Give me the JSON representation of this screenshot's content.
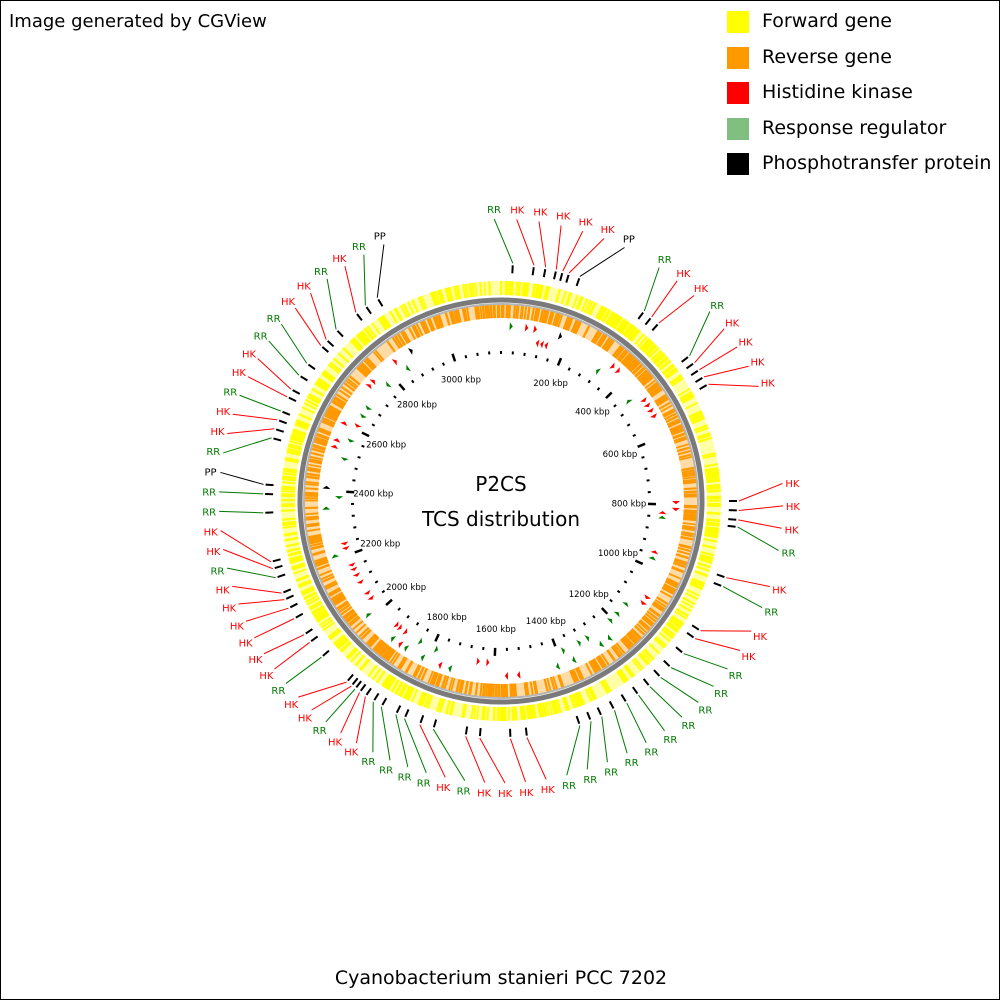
{
  "credit": "Image generated by CGView",
  "legend": [
    {
      "label": "Forward gene",
      "color": "#ffff00"
    },
    {
      "label": "Reverse gene",
      "color": "#ff9900"
    },
    {
      "label": "Histidine kinase",
      "color": "#ff0000"
    },
    {
      "label": "Response regulator",
      "color": "#7fbf7f"
    },
    {
      "label": "Phosphotransfer protein",
      "color": "#000000"
    }
  ],
  "center": {
    "line1": "P2CS",
    "line2": "TCS distribution"
  },
  "organism": "Cyanobacterium stanieri PCC 7202",
  "genome_length_kbp": 3160,
  "ticks": [
    {
      "kbp": 200,
      "label": "200 kbp"
    },
    {
      "kbp": 400,
      "label": "400 kbp"
    },
    {
      "kbp": 600,
      "label": "600 kbp"
    },
    {
      "kbp": 800,
      "label": "800 kbp"
    },
    {
      "kbp": 1000,
      "label": "1000 kbp"
    },
    {
      "kbp": 1200,
      "label": "1200 kbp"
    },
    {
      "kbp": 1400,
      "label": "1400 kbp"
    },
    {
      "kbp": 1600,
      "label": "1600 kbp"
    },
    {
      "kbp": 1800,
      "label": "1800 kbp"
    },
    {
      "kbp": 2000,
      "label": "2000 kbp"
    },
    {
      "kbp": 2200,
      "label": "2200 kbp"
    },
    {
      "kbp": 2400,
      "label": "2400 kbp"
    },
    {
      "kbp": 2600,
      "label": "2600 kbp"
    },
    {
      "kbp": 2800,
      "label": "2800 kbp"
    },
    {
      "kbp": 3000,
      "label": "3000 kbp"
    }
  ],
  "features": [
    {
      "type": "RR",
      "kbp": 25,
      "strand": 1
    },
    {
      "type": "HK",
      "kbp": 70,
      "strand": 1
    },
    {
      "type": "HK",
      "kbp": 95,
      "strand": 1
    },
    {
      "type": "HK",
      "kbp": 118,
      "strand": -1
    },
    {
      "type": "HK",
      "kbp": 132,
      "strand": -1
    },
    {
      "type": "HK",
      "kbp": 146,
      "strand": -1
    },
    {
      "type": "PP",
      "kbp": 170,
      "strand": 1
    },
    {
      "type": "RR",
      "kbp": 325,
      "strand": -1
    },
    {
      "type": "HK",
      "kbp": 345,
      "strand": 1
    },
    {
      "type": "HK",
      "kbp": 365,
      "strand": 1
    },
    {
      "type": "RR",
      "kbp": 460,
      "strand": -1
    },
    {
      "type": "HK",
      "kbp": 478,
      "strand": 1
    },
    {
      "type": "HK",
      "kbp": 496,
      "strand": 1
    },
    {
      "type": "HK",
      "kbp": 514,
      "strand": 1
    },
    {
      "type": "HK",
      "kbp": 532,
      "strand": 1
    },
    {
      "type": "HK",
      "kbp": 790,
      "strand": 1
    },
    {
      "type": "HK",
      "kbp": 810,
      "strand": 1
    },
    {
      "type": "HK",
      "kbp": 830,
      "strand": -1
    },
    {
      "type": "RR",
      "kbp": 845,
      "strand": -1
    },
    {
      "type": "HK",
      "kbp": 955,
      "strand": -1
    },
    {
      "type": "RR",
      "kbp": 975,
      "strand": -1
    },
    {
      "type": "HK",
      "kbp": 1080,
      "strand": 1
    },
    {
      "type": "HK",
      "kbp": 1100,
      "strand": 1
    },
    {
      "type": "RR",
      "kbp": 1140,
      "strand": -1
    },
    {
      "type": "RR",
      "kbp": 1180,
      "strand": -1
    },
    {
      "type": "RR",
      "kbp": 1210,
      "strand": -1
    },
    {
      "type": "RR",
      "kbp": 1240,
      "strand": 1
    },
    {
      "type": "RR",
      "kbp": 1270,
      "strand": 1
    },
    {
      "type": "RR",
      "kbp": 1300,
      "strand": -1
    },
    {
      "type": "RR",
      "kbp": 1330,
      "strand": -1
    },
    {
      "type": "RR",
      "kbp": 1360,
      "strand": 1
    },
    {
      "type": "RR",
      "kbp": 1385,
      "strand": -1
    },
    {
      "type": "RR",
      "kbp": 1410,
      "strand": 1
    },
    {
      "type": "HK",
      "kbp": 1525,
      "strand": 1
    },
    {
      "type": "HK",
      "kbp": 1560,
      "strand": 1
    },
    {
      "type": "HK",
      "kbp": 1625,
      "strand": -1
    },
    {
      "type": "HK",
      "kbp": 1655,
      "strand": -1
    },
    {
      "type": "RR",
      "kbp": 1725,
      "strand": 1
    },
    {
      "type": "HK",
      "kbp": 1755,
      "strand": 1
    },
    {
      "type": "RR",
      "kbp": 1790,
      "strand": -1
    },
    {
      "type": "RR",
      "kbp": 1810,
      "strand": 1
    },
    {
      "type": "RR",
      "kbp": 1845,
      "strand": -1
    },
    {
      "type": "RR",
      "kbp": 1865,
      "strand": 1
    },
    {
      "type": "HK",
      "kbp": 1885,
      "strand": 1
    },
    {
      "type": "HK",
      "kbp": 1900,
      "strand": -1
    },
    {
      "type": "RR",
      "kbp": 1912,
      "strand": 1
    },
    {
      "type": "HK",
      "kbp": 1922,
      "strand": -1
    },
    {
      "type": "HK",
      "kbp": 1935,
      "strand": -1
    },
    {
      "type": "RR",
      "kbp": 2010,
      "strand": 1
    },
    {
      "type": "HK",
      "kbp": 2050,
      "strand": -1
    },
    {
      "type": "HK",
      "kbp": 2070,
      "strand": -1
    },
    {
      "type": "HK",
      "kbp": 2110,
      "strand": -1
    },
    {
      "type": "HK",
      "kbp": 2135,
      "strand": -1
    },
    {
      "type": "HK",
      "kbp": 2155,
      "strand": -1
    },
    {
      "type": "HK",
      "kbp": 2170,
      "strand": -1
    },
    {
      "type": "RR",
      "kbp": 2205,
      "strand": 1
    },
    {
      "type": "HK",
      "kbp": 2225,
      "strand": -1
    },
    {
      "type": "HK",
      "kbp": 2240,
      "strand": -1
    },
    {
      "type": "RR",
      "kbp": 2345,
      "strand": 1
    },
    {
      "type": "RR",
      "kbp": 2385,
      "strand": -1
    },
    {
      "type": "PP",
      "kbp": 2405,
      "strand": 1
    },
    {
      "type": "RR",
      "kbp": 2505,
      "strand": -1
    },
    {
      "type": "HK",
      "kbp": 2525,
      "strand": 1
    },
    {
      "type": "HK",
      "kbp": 2545,
      "strand": 1
    },
    {
      "type": "RR",
      "kbp": 2565,
      "strand": -1
    },
    {
      "type": "HK",
      "kbp": 2598,
      "strand": 1
    },
    {
      "type": "HK",
      "kbp": 2616,
      "strand": -1
    },
    {
      "type": "RR",
      "kbp": 2650,
      "strand": -1
    },
    {
      "type": "RR",
      "kbp": 2680,
      "strand": -1
    },
    {
      "type": "HK",
      "kbp": 2728,
      "strand": 1
    },
    {
      "type": "HK",
      "kbp": 2745,
      "strand": 1
    },
    {
      "type": "RR",
      "kbp": 2775,
      "strand": -1
    },
    {
      "type": "HK",
      "kbp": 2830,
      "strand": 1
    },
    {
      "type": "RR",
      "kbp": 2855,
      "strand": -1
    },
    {
      "type": "PP",
      "kbp": 2885,
      "strand": 1
    }
  ],
  "feature_colors": {
    "HK": "#ff0000",
    "RR": "#007a00",
    "PP": "#000000"
  },
  "track_colors": {
    "forward": "#ffff00",
    "reverse": "#ff9900",
    "backbone": "#7a7a7a",
    "arrow_hk": "#ff0000",
    "arrow_rr": "#008000",
    "arrow_pp": "#000000"
  }
}
